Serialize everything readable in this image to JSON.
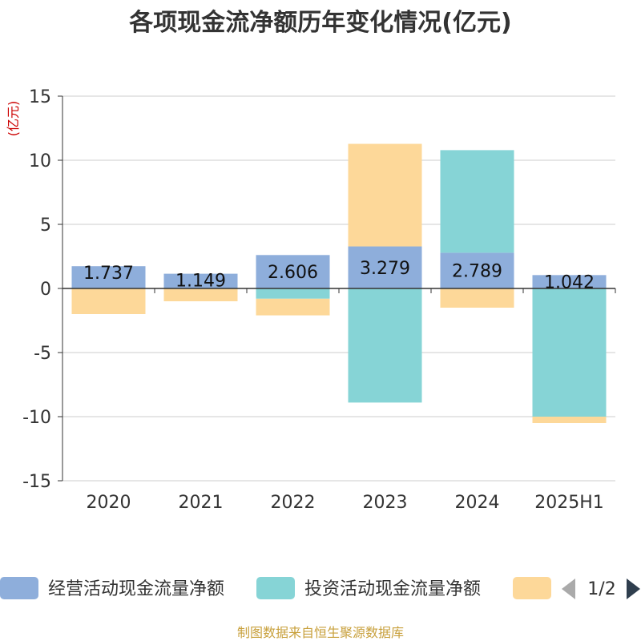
{
  "chart_data": {
    "type": "bar",
    "stacked": true,
    "title": "各项现金流净额历年变化情况(亿元)",
    "unit_label": "(亿元)",
    "categories": [
      "2020",
      "2021",
      "2022",
      "2023",
      "2024",
      "2025H1"
    ],
    "ylim": [
      -15,
      15
    ],
    "yticks": [
      15,
      10,
      5,
      0,
      -5,
      -10,
      -15
    ],
    "grid": true,
    "series": [
      {
        "name": "经营活动现金流量净额",
        "color": "#8eaedb",
        "values": [
          1.737,
          1.149,
          2.606,
          3.279,
          2.789,
          1.042
        ],
        "labels": [
          "1.737",
          "1.149",
          "2.606",
          "3.279",
          "2.789",
          "1.042"
        ]
      },
      {
        "name": "投资活动现金流量净额",
        "color": "#86d4d6",
        "values": [
          0,
          0,
          -0.8,
          -8.9,
          8.0,
          -10.0
        ]
      },
      {
        "name": "",
        "color": "#fdd899",
        "values": [
          -2.0,
          -1.0,
          -1.3,
          8.0,
          -1.5,
          -0.5
        ]
      }
    ],
    "legend": {
      "position": "bottom",
      "page": "1/2"
    },
    "source": "制图数据来自恒生聚源数据库"
  }
}
